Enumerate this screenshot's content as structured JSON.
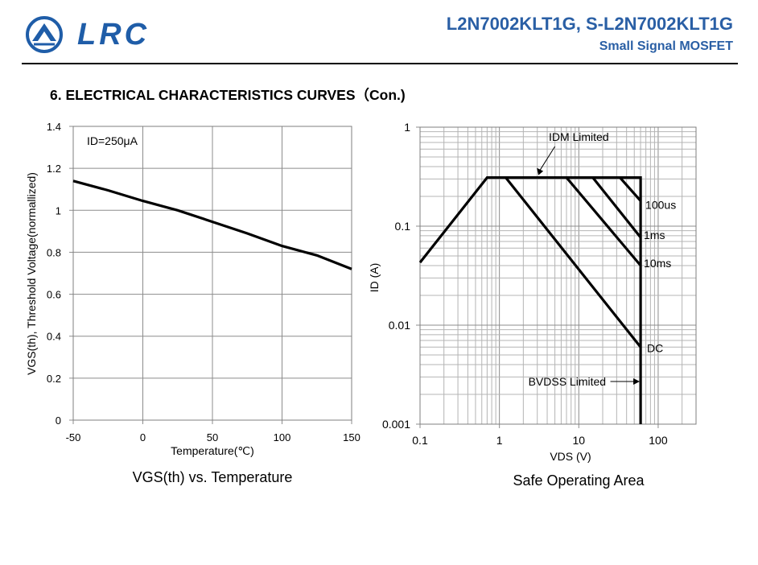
{
  "header": {
    "logo_text": "LRC",
    "part_number": "L2N7002KLT1G, S-L2N7002KLT1G",
    "part_type": "Small Signal MOSFET",
    "brand_color": "#2a5fa5"
  },
  "section": {
    "title": "6. ELECTRICAL CHARACTERISTICS CURVES（Con.)"
  },
  "chart_data": [
    {
      "type": "line",
      "title": "VGS(th) vs. Temperature",
      "xlabel": "Temperature(℃)",
      "ylabel": "VGS(th),  Threshold Voltage(normallized)",
      "xlim": [
        -50,
        150
      ],
      "ylim": [
        0,
        1.4
      ],
      "x_ticks": [
        "-50",
        "0",
        "50",
        "100",
        "150"
      ],
      "y_ticks": [
        "0",
        "0.2",
        "0.4",
        "0.6",
        "0.8",
        "1",
        "1.2",
        "1.4"
      ],
      "grid": true,
      "annotation": "ID=250μA",
      "series": [
        {
          "x": [
            -50,
            -25,
            0,
            25,
            50,
            75,
            100,
            125,
            150
          ],
          "y": [
            1.14,
            1.095,
            1.045,
            1.0,
            0.945,
            0.89,
            0.83,
            0.785,
            0.72
          ]
        }
      ]
    },
    {
      "type": "line",
      "title": "Safe Operating Area",
      "xlabel": "VDS (V)",
      "ylabel": "ID (A)",
      "xscale": "log",
      "yscale": "log",
      "xlim": [
        0.1,
        300
      ],
      "ylim": [
        0.001,
        1
      ],
      "x_ticks": [
        "0.1",
        "1",
        "10",
        "100"
      ],
      "y_ticks": [
        "0.001",
        "0.01",
        "0.1",
        "1"
      ],
      "grid": true,
      "labels": {
        "idm": "IDM Limited",
        "us100": "100us",
        "ms1": "1ms",
        "ms10": "10ms",
        "dc": "DC",
        "bvdss": "BVDSS Limited"
      },
      "series": [
        {
          "id": "envelope",
          "x": [
            0.1,
            0.7,
            60,
            60
          ],
          "y": [
            0.043,
            0.31,
            0.31,
            0.001
          ]
        },
        {
          "id": "dc",
          "x": [
            1.2,
            60
          ],
          "y": [
            0.31,
            0.006
          ]
        },
        {
          "id": "10ms",
          "x": [
            7,
            60
          ],
          "y": [
            0.31,
            0.04
          ]
        },
        {
          "id": "1ms",
          "x": [
            15,
            60
          ],
          "y": [
            0.31,
            0.077
          ]
        },
        {
          "id": "100us",
          "x": [
            33,
            60
          ],
          "y": [
            0.31,
            0.18
          ]
        }
      ]
    }
  ]
}
